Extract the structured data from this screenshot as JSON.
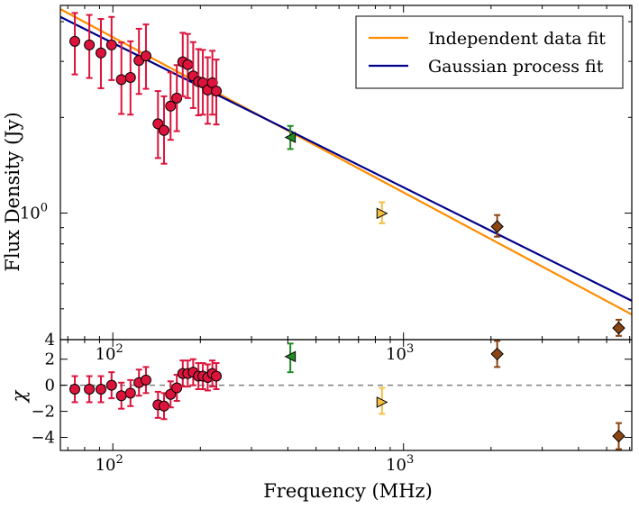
{
  "chart_data": [
    {
      "type": "scatter",
      "panel": "top",
      "xlabel": "Frequency (MHz)",
      "ylabel": "Flux Density (Jy)",
      "x_scale": "log",
      "y_scale": "log",
      "xlim": [
        66,
        6100
      ],
      "ylim": [
        0.4,
        4.5
      ],
      "x_ticks": [
        {
          "value": 100,
          "label": "10",
          "exp": "2"
        },
        {
          "value": 1000,
          "label": "10",
          "exp": "3"
        }
      ],
      "y_ticks": [
        {
          "value": 1.0,
          "label": "10",
          "exp": "0"
        }
      ],
      "y_ticks_plain": [
        {
          "value": 0.4,
          "label": "4"
        }
      ],
      "legend": {
        "placement": "top-right",
        "entries": [
          {
            "label": "Independent data fit",
            "color": "#ff8c00"
          },
          {
            "label": "Gaussian process fit",
            "color": "#00008b"
          }
        ]
      },
      "lines": [
        {
          "name": "Independent data fit",
          "color": "#ff8c00",
          "x": [
            66,
            6100
          ],
          "y": [
            4.38,
            0.48
          ]
        },
        {
          "name": "Gaussian process fit",
          "color": "#00008b",
          "x": [
            66,
            6100
          ],
          "y": [
            4.14,
            0.53
          ]
        }
      ],
      "points": [
        {
          "x": 74,
          "y": 3.47,
          "ylo": 2.73,
          "yhi": 4.26,
          "marker": "circle",
          "color": "#dc143c"
        },
        {
          "x": 83,
          "y": 3.38,
          "ylo": 2.66,
          "yhi": 4.2,
          "marker": "circle",
          "color": "#dc143c"
        },
        {
          "x": 91,
          "y": 3.19,
          "ylo": 2.47,
          "yhi": 4.08,
          "marker": "circle",
          "color": "#dc143c"
        },
        {
          "x": 99,
          "y": 3.38,
          "ylo": 2.62,
          "yhi": 4.14,
          "marker": "circle",
          "color": "#dc143c"
        },
        {
          "x": 107,
          "y": 2.63,
          "ylo": 2.05,
          "yhi": 3.44,
          "marker": "circle",
          "color": "#dc143c"
        },
        {
          "x": 115,
          "y": 2.67,
          "ylo": 2.04,
          "yhi": 3.47,
          "marker": "circle",
          "color": "#dc143c"
        },
        {
          "x": 123,
          "y": 3.02,
          "ylo": 2.37,
          "yhi": 3.8,
          "marker": "circle",
          "color": "#dc143c"
        },
        {
          "x": 130,
          "y": 3.12,
          "ylo": 2.46,
          "yhi": 3.92,
          "marker": "circle",
          "color": "#dc143c"
        },
        {
          "x": 143,
          "y": 1.91,
          "ylo": 1.49,
          "yhi": 2.42,
          "marker": "circle",
          "color": "#dc143c"
        },
        {
          "x": 150,
          "y": 1.82,
          "ylo": 1.43,
          "yhi": 2.33,
          "marker": "circle",
          "color": "#dc143c"
        },
        {
          "x": 158,
          "y": 2.17,
          "ylo": 1.7,
          "yhi": 2.77,
          "marker": "circle",
          "color": "#dc143c"
        },
        {
          "x": 166,
          "y": 2.3,
          "ylo": 1.81,
          "yhi": 2.92,
          "marker": "circle",
          "color": "#dc143c"
        },
        {
          "x": 174,
          "y": 2.99,
          "ylo": 2.33,
          "yhi": 3.69,
          "marker": "circle",
          "color": "#dc143c"
        },
        {
          "x": 181,
          "y": 2.93,
          "ylo": 2.3,
          "yhi": 3.66,
          "marker": "circle",
          "color": "#dc143c"
        },
        {
          "x": 189,
          "y": 2.7,
          "ylo": 2.14,
          "yhi": 3.45,
          "marker": "circle",
          "color": "#dc143c"
        },
        {
          "x": 197,
          "y": 2.59,
          "ylo": 2.03,
          "yhi": 3.28,
          "marker": "circle",
          "color": "#dc143c"
        },
        {
          "x": 204,
          "y": 2.57,
          "ylo": 2.04,
          "yhi": 3.26,
          "marker": "circle",
          "color": "#dc143c"
        },
        {
          "x": 212,
          "y": 2.44,
          "ylo": 1.91,
          "yhi": 3.09,
          "marker": "circle",
          "color": "#dc143c"
        },
        {
          "x": 220,
          "y": 2.57,
          "ylo": 2.04,
          "yhi": 3.24,
          "marker": "circle",
          "color": "#dc143c"
        },
        {
          "x": 227,
          "y": 2.42,
          "ylo": 1.9,
          "yhi": 3.04,
          "marker": "circle",
          "color": "#dc143c"
        },
        {
          "x": 408,
          "y": 1.73,
          "ylo": 1.59,
          "yhi": 1.88,
          "marker": "triangle-left",
          "color": "#228b22"
        },
        {
          "x": 843,
          "y": 0.998,
          "ylo": 0.929,
          "yhi": 1.082,
          "marker": "triangle-right",
          "color": "#f4c040"
        },
        {
          "x": 2100,
          "y": 0.907,
          "ylo": 0.843,
          "yhi": 0.986,
          "marker": "diamond",
          "color": "#8b4513"
        },
        {
          "x": 5500,
          "y": 0.435,
          "ylo": 0.411,
          "yhi": 0.462,
          "marker": "diamond",
          "color": "#8b4513"
        }
      ]
    },
    {
      "type": "scatter",
      "panel": "bottom",
      "xlabel": "Frequency (MHz)",
      "ylabel": "χ",
      "x_scale": "log",
      "xlim": [
        66,
        6100
      ],
      "ylim": [
        -5,
        3.5
      ],
      "x_ticks": [
        {
          "value": 100,
          "label": "10",
          "exp": "2"
        },
        {
          "value": 1000,
          "label": "10",
          "exp": "3"
        }
      ],
      "y_ticks": [
        {
          "value": 2,
          "label": "2"
        },
        {
          "value": 0,
          "label": "0"
        },
        {
          "value": -2,
          "label": "−2"
        },
        {
          "value": -4,
          "label": "−4"
        }
      ],
      "reference_line": {
        "y": 0,
        "style": "dashed",
        "color": "#808080"
      },
      "points": [
        {
          "x": 74,
          "y": -0.3,
          "ylo": -1.3,
          "yhi": 0.7,
          "marker": "circle",
          "color": "#dc143c"
        },
        {
          "x": 83,
          "y": -0.3,
          "ylo": -1.3,
          "yhi": 0.7,
          "marker": "circle",
          "color": "#dc143c"
        },
        {
          "x": 91,
          "y": -0.3,
          "ylo": -1.3,
          "yhi": 0.7,
          "marker": "circle",
          "color": "#dc143c"
        },
        {
          "x": 99,
          "y": 0.0,
          "ylo": -1.0,
          "yhi": 1.0,
          "marker": "circle",
          "color": "#dc143c"
        },
        {
          "x": 107,
          "y": -0.8,
          "ylo": -1.8,
          "yhi": 0.2,
          "marker": "circle",
          "color": "#dc143c"
        },
        {
          "x": 115,
          "y": -0.6,
          "ylo": -1.6,
          "yhi": 0.4,
          "marker": "circle",
          "color": "#dc143c"
        },
        {
          "x": 123,
          "y": 0.2,
          "ylo": -0.8,
          "yhi": 1.2,
          "marker": "circle",
          "color": "#dc143c"
        },
        {
          "x": 130,
          "y": 0.4,
          "ylo": -0.6,
          "yhi": 1.4,
          "marker": "circle",
          "color": "#dc143c"
        },
        {
          "x": 143,
          "y": -1.5,
          "ylo": -2.5,
          "yhi": -0.5,
          "marker": "circle",
          "color": "#dc143c"
        },
        {
          "x": 150,
          "y": -1.6,
          "ylo": -2.6,
          "yhi": -0.6,
          "marker": "circle",
          "color": "#dc143c"
        },
        {
          "x": 158,
          "y": -0.7,
          "ylo": -1.7,
          "yhi": 0.3,
          "marker": "circle",
          "color": "#dc143c"
        },
        {
          "x": 166,
          "y": -0.2,
          "ylo": -1.2,
          "yhi": 0.8,
          "marker": "circle",
          "color": "#dc143c"
        },
        {
          "x": 174,
          "y": 0.9,
          "ylo": -0.1,
          "yhi": 1.9,
          "marker": "circle",
          "color": "#dc143c"
        },
        {
          "x": 181,
          "y": 0.9,
          "ylo": -0.1,
          "yhi": 1.9,
          "marker": "circle",
          "color": "#dc143c"
        },
        {
          "x": 189,
          "y": 1.0,
          "ylo": 0.0,
          "yhi": 2.0,
          "marker": "circle",
          "color": "#dc143c"
        },
        {
          "x": 197,
          "y": 0.7,
          "ylo": -0.3,
          "yhi": 1.7,
          "marker": "circle",
          "color": "#dc143c"
        },
        {
          "x": 204,
          "y": 0.7,
          "ylo": -0.3,
          "yhi": 1.7,
          "marker": "circle",
          "color": "#dc143c"
        },
        {
          "x": 212,
          "y": 0.6,
          "ylo": -0.4,
          "yhi": 1.6,
          "marker": "circle",
          "color": "#dc143c"
        },
        {
          "x": 220,
          "y": 0.9,
          "ylo": -0.1,
          "yhi": 1.9,
          "marker": "circle",
          "color": "#dc143c"
        },
        {
          "x": 227,
          "y": 0.7,
          "ylo": -0.3,
          "yhi": 1.7,
          "marker": "circle",
          "color": "#dc143c"
        },
        {
          "x": 408,
          "y": 2.2,
          "ylo": 1.0,
          "yhi": 3.2,
          "marker": "triangle-left",
          "color": "#228b22"
        },
        {
          "x": 843,
          "y": -1.3,
          "ylo": -2.2,
          "yhi": -0.2,
          "marker": "triangle-right",
          "color": "#f4c040"
        },
        {
          "x": 2100,
          "y": 2.4,
          "ylo": 1.4,
          "yhi": 3.4,
          "marker": "diamond",
          "color": "#8b4513"
        },
        {
          "x": 5500,
          "y": -3.9,
          "ylo": -4.9,
          "yhi": -2.9,
          "marker": "diamond",
          "color": "#8b4513"
        }
      ]
    }
  ]
}
